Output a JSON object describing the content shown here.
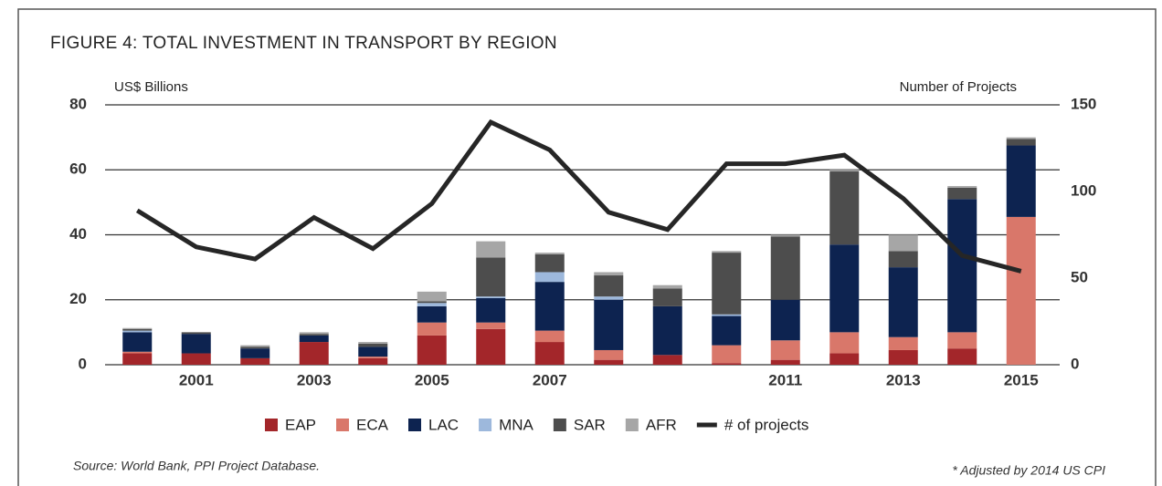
{
  "chart_data": {
    "type": "bar",
    "stacked": true,
    "title": "FIGURE 4: TOTAL INVESTMENT IN TRANSPORT BY REGION",
    "y_label": "US$ Billions",
    "y2_label": "Number of Projects",
    "source": "Source: World Bank, PPI Project Database.",
    "note": "* Adjusted by 2014 US CPI",
    "categories": [
      null,
      "2001",
      null,
      "2003",
      null,
      "2005",
      null,
      "2007",
      null,
      null,
      null,
      "2011",
      null,
      "2013",
      null,
      "2015"
    ],
    "ylim": [
      0,
      80
    ],
    "yticks": [
      0,
      20,
      40,
      60,
      80
    ],
    "y2lim": [
      0,
      150
    ],
    "y2ticks": [
      0,
      50,
      100,
      150
    ],
    "grid": true,
    "legend": "bottom",
    "series": [
      {
        "name": "EAP",
        "color": "#a3262a",
        "values": [
          3.5,
          3.5,
          2,
          7,
          2,
          9,
          11,
          7,
          1.5,
          3,
          0.5,
          1.5,
          3.5,
          4.5,
          5,
          0
        ]
      },
      {
        "name": "ECA",
        "color": "#d9776a",
        "values": [
          0.5,
          0,
          0,
          0,
          0.5,
          4,
          2,
          3.5,
          3,
          0,
          5.5,
          6,
          6.5,
          4,
          5,
          45.5
        ]
      },
      {
        "name": "LAC",
        "color": "#0d2350",
        "values": [
          6,
          6,
          3,
          2,
          3,
          5,
          7.5,
          15,
          15.5,
          15,
          9,
          12.5,
          27,
          21.5,
          41,
          22
        ]
      },
      {
        "name": "MNA",
        "color": "#9db8dc",
        "values": [
          0.5,
          0,
          0,
          0,
          0,
          1,
          0.5,
          3,
          1,
          0,
          0.5,
          0,
          0,
          0,
          0,
          0
        ]
      },
      {
        "name": "SAR",
        "color": "#4d4d4d",
        "values": [
          0.5,
          0.5,
          0.5,
          0.5,
          1,
          0.5,
          12,
          5.5,
          6.5,
          5.5,
          19,
          19.5,
          22.5,
          5,
          3.5,
          2
        ]
      },
      {
        "name": "AFR",
        "color": "#a6a6a6",
        "values": [
          0.3,
          0,
          0.5,
          0.5,
          0.5,
          3,
          5,
          0.5,
          1,
          1,
          0.5,
          0.5,
          0.5,
          5,
          0.5,
          0.5
        ]
      },
      {
        "name": "# of projects",
        "color": "#262626",
        "type": "line",
        "axis": "y2",
        "values": [
          89,
          68,
          61,
          85,
          67,
          93,
          140,
          124,
          88,
          78,
          116,
          116,
          121,
          96,
          63,
          54
        ]
      }
    ]
  }
}
